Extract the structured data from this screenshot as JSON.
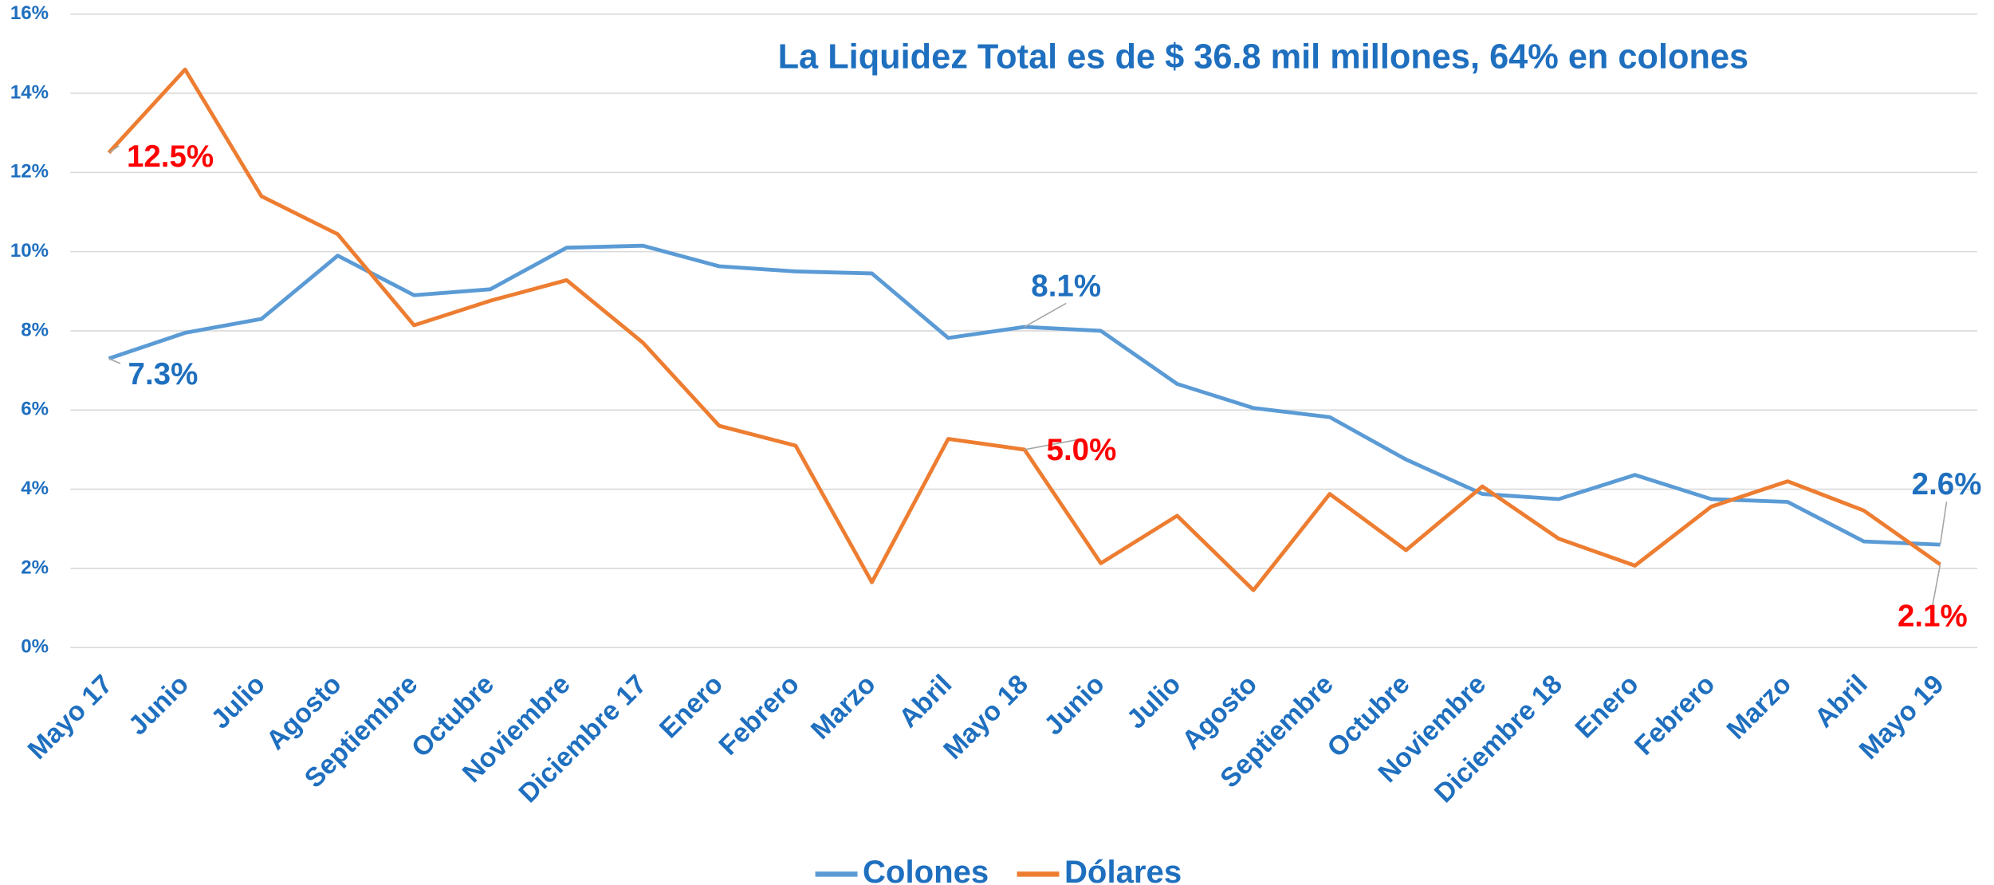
{
  "chart_data": {
    "type": "line",
    "title": "La Liquidez Total es de $ 36.8 mil millones, 64% en colones",
    "categories": [
      "Mayo 17",
      "Junio",
      "Julio",
      "Agosto",
      "Septiembre",
      "Octubre",
      "Noviembre",
      "Diciembre 17",
      "Enero",
      "Febrero",
      "Marzo",
      "Abril",
      "Mayo 18",
      "Junio",
      "Julio",
      "Agosto",
      "Septiembre",
      "Octubre",
      "Noviembre",
      "Diciembre 18",
      "Enero",
      "Febrero",
      "Marzo",
      "Abril",
      "Mayo 19"
    ],
    "series": [
      {
        "name": "Colones",
        "color": "#5b9bd5",
        "label_color": "#1f6fbf",
        "values": [
          7.3,
          7.95,
          8.3,
          9.9,
          8.9,
          9.05,
          10.1,
          10.15,
          9.63,
          9.5,
          9.45,
          7.82,
          8.1,
          8.0,
          6.66,
          6.05,
          5.82,
          4.75,
          3.88,
          3.75,
          4.36,
          3.75,
          3.68,
          2.68,
          2.6
        ],
        "value_labels": [
          "7.3%",
          null,
          null,
          null,
          null,
          null,
          null,
          null,
          null,
          null,
          null,
          null,
          "8.1%",
          null,
          null,
          null,
          null,
          null,
          null,
          null,
          null,
          null,
          null,
          null,
          "2.6%"
        ]
      },
      {
        "name": "Dólares",
        "color": "#ed7d31",
        "label_color": "#ff0000",
        "values": [
          12.5,
          14.6,
          11.4,
          10.44,
          8.14,
          8.76,
          9.28,
          7.7,
          5.6,
          5.1,
          1.65,
          5.27,
          5.0,
          2.13,
          3.33,
          1.45,
          3.88,
          2.46,
          4.07,
          2.75,
          2.07,
          3.56,
          4.2,
          3.46,
          2.1
        ],
        "value_labels": [
          "12.5%",
          null,
          null,
          null,
          null,
          null,
          null,
          null,
          null,
          null,
          null,
          null,
          "5.0%",
          null,
          null,
          null,
          null,
          null,
          null,
          null,
          null,
          null,
          null,
          null,
          "2.1%"
        ]
      }
    ],
    "ylim": [
      0,
      16
    ],
    "yticks": [
      {
        "value": 0,
        "label": "0%"
      },
      {
        "value": 2,
        "label": "2%"
      },
      {
        "value": 4,
        "label": "4%"
      },
      {
        "value": 6,
        "label": "6%"
      },
      {
        "value": 8,
        "label": "8%"
      },
      {
        "value": 10,
        "label": "10%"
      },
      {
        "value": 12,
        "label": "12%"
      },
      {
        "value": 14,
        "label": "14%"
      },
      {
        "value": 16,
        "label": "16%"
      }
    ],
    "grid": true,
    "legend": "bottom"
  }
}
